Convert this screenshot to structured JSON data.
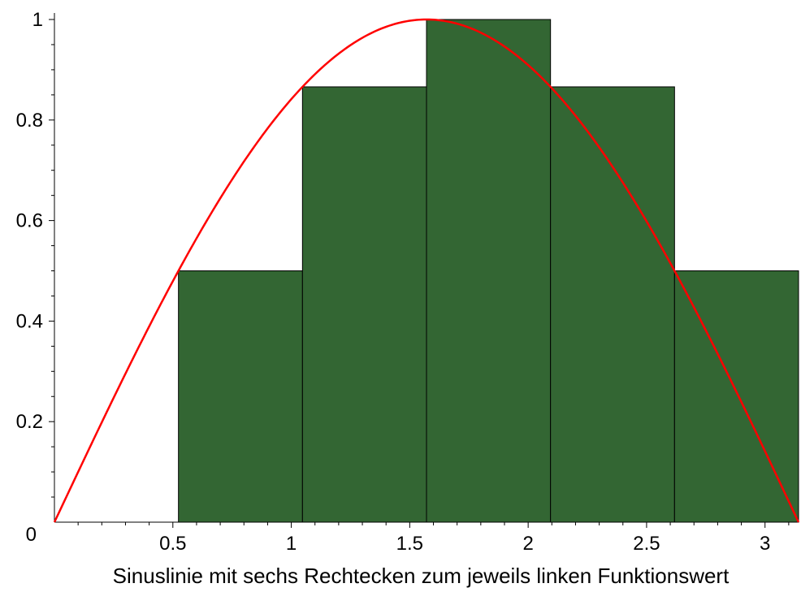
{
  "chart_data": {
    "type": "bar",
    "title": "",
    "xlabel": "Sinuslinie mit sechs Rechtecken zum jeweils linken Funktionswert",
    "ylabel": "",
    "xlim": [
      0,
      3.14159
    ],
    "ylim": [
      0,
      1
    ],
    "x_ticks": [
      {
        "value": 0.5,
        "label": "0.5"
      },
      {
        "value": 1,
        "label": "1"
      },
      {
        "value": 1.5,
        "label": "1.5"
      },
      {
        "value": 2,
        "label": "2"
      },
      {
        "value": 2.5,
        "label": "2.5"
      },
      {
        "value": 3,
        "label": "3"
      }
    ],
    "y_ticks": [
      {
        "value": 0,
        "label": "0"
      },
      {
        "value": 0.2,
        "label": "0.2"
      },
      {
        "value": 0.4,
        "label": "0.4"
      },
      {
        "value": 0.6,
        "label": "0.6"
      },
      {
        "value": 0.8,
        "label": "0.8"
      },
      {
        "value": 1,
        "label": "1"
      }
    ],
    "rectangles": [
      {
        "x0": 0,
        "x1": 0.5236,
        "height": 0
      },
      {
        "x0": 0.5236,
        "x1": 1.0472,
        "height": 0.5
      },
      {
        "x0": 1.0472,
        "x1": 1.5708,
        "height": 0.866
      },
      {
        "x0": 1.5708,
        "x1": 2.0944,
        "height": 1
      },
      {
        "x0": 2.0944,
        "x1": 2.618,
        "height": 0.866
      },
      {
        "x0": 2.618,
        "x1": 3.1416,
        "height": 0.5
      }
    ],
    "curve": {
      "function": "sin(x)",
      "x_range": [
        0,
        3.14159
      ]
    },
    "grid": false,
    "colors": {
      "bars": "#336633",
      "bar_edge": "#000000",
      "curve": "#ff0000"
    }
  }
}
